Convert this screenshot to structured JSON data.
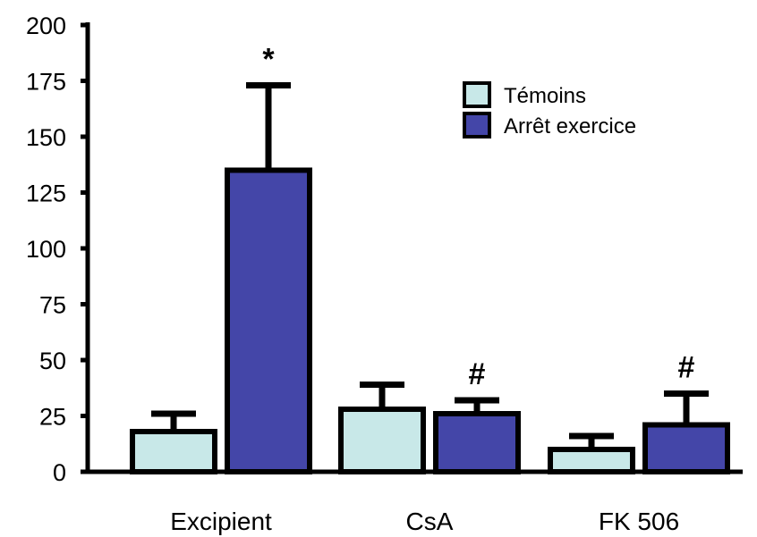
{
  "chart_data": {
    "type": "bar",
    "categories": [
      "Excipient",
      "CsA",
      "FK 506"
    ],
    "series": [
      {
        "name": "Témoins",
        "values": [
          18,
          28,
          10
        ],
        "errors": [
          8,
          11,
          6
        ],
        "color": "#c8e8e8"
      },
      {
        "name": "Arrêt exercice",
        "values": [
          135,
          26,
          21
        ],
        "errors": [
          38,
          6,
          14
        ],
        "color": "#4446a8"
      }
    ],
    "annotations": [
      {
        "category": 0,
        "series": 1,
        "text": "*"
      },
      {
        "category": 1,
        "series": 1,
        "text": "#"
      },
      {
        "category": 2,
        "series": 1,
        "text": "#"
      }
    ],
    "ylim": [
      0,
      200
    ],
    "yticks": [
      0,
      25,
      50,
      75,
      100,
      125,
      150,
      175,
      200
    ],
    "legend_position": "top-right",
    "grid": false
  }
}
